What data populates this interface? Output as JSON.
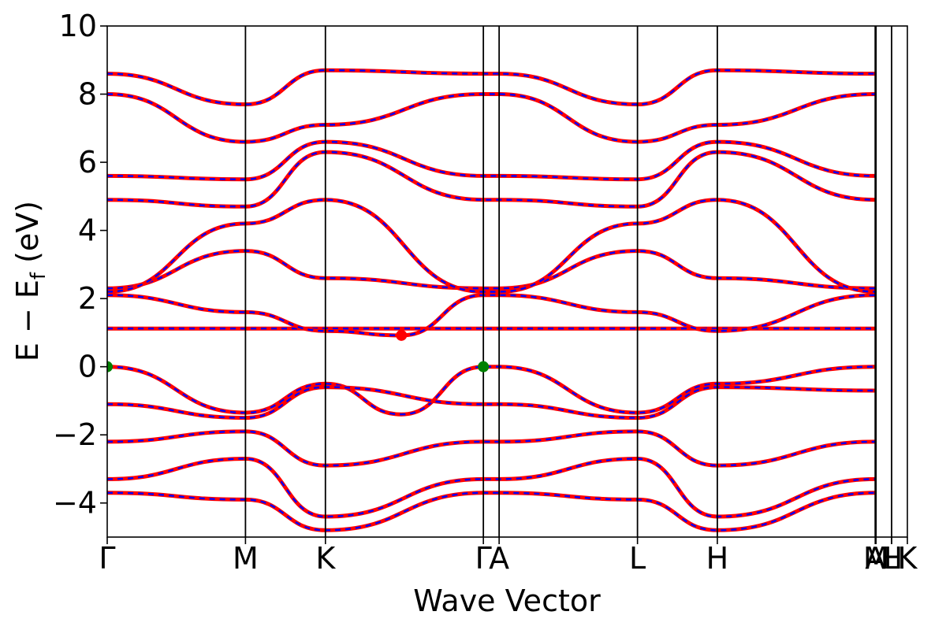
{
  "chart_data": {
    "type": "line",
    "title": "",
    "xlabel": "Wave Vector",
    "ylabel": "E − E",
    "ylabel_subscript": "f",
    "ylabel_unit": " (eV)",
    "ylim": [
      -5,
      10
    ],
    "y_ticks": [
      -4,
      -2,
      0,
      2,
      4,
      6,
      8,
      10
    ],
    "y_tick_labels": [
      "−4",
      "−2",
      "0",
      "2",
      "4",
      "6",
      "8",
      "10"
    ],
    "x_range": [
      0,
      1
    ],
    "high_symmetry_points": [
      {
        "label": "Γ",
        "x": 0.0
      },
      {
        "label": "M",
        "x": 0.1728
      },
      {
        "label": "K",
        "x": 0.2727
      },
      {
        "label": "Γ",
        "x": 0.4701
      },
      {
        "label": "A",
        "x": 0.4898
      },
      {
        "label": "L",
        "x": 0.6627
      },
      {
        "label": "H",
        "x": 0.7625
      },
      {
        "label": "A",
        "x": 0.9598
      },
      {
        "label": "M",
        "x": 0.9608
      },
      {
        "label": "L",
        "x": 0.9803
      },
      {
        "label": "H",
        "x": 0.9803
      },
      {
        "label": "K",
        "x": 1.0
      }
    ],
    "special_points": [
      {
        "name": "VBM",
        "x": 0.0,
        "y": 0.0,
        "color": "#008000"
      },
      {
        "name": "VBM",
        "x": 0.4701,
        "y": 0.0,
        "color": "#008000"
      },
      {
        "name": "CBM",
        "x": 0.3677,
        "y": 0.92,
        "color": "#ff0000"
      }
    ],
    "series_styles": [
      {
        "color": "#ff0000",
        "linestyle": "solid"
      },
      {
        "color": "#0000ff",
        "linestyle": "dashed"
      }
    ],
    "bands_approx": [
      [
        [
          0.0,
          1.12
        ],
        [
          0.1728,
          1.12
        ],
        [
          0.2727,
          1.12
        ],
        [
          0.4701,
          1.12
        ],
        [
          0.4898,
          1.12
        ],
        [
          0.6627,
          1.12
        ],
        [
          0.7625,
          1.12
        ],
        [
          0.9598,
          1.12
        ]
      ],
      [
        [
          0.0,
          2.1
        ],
        [
          0.1728,
          1.6
        ],
        [
          0.2727,
          1.05
        ],
        [
          0.3677,
          0.92
        ],
        [
          0.4701,
          2.1
        ],
        [
          0.4898,
          2.1
        ],
        [
          0.6627,
          1.6
        ],
        [
          0.7625,
          1.05
        ],
        [
          0.9598,
          2.1
        ]
      ],
      [
        [
          0.0,
          2.3
        ],
        [
          0.1728,
          3.4
        ],
        [
          0.2727,
          2.6
        ],
        [
          0.4701,
          2.3
        ],
        [
          0.4898,
          2.3
        ],
        [
          0.6627,
          3.4
        ],
        [
          0.7625,
          2.6
        ],
        [
          0.9598,
          2.3
        ]
      ],
      [
        [
          0.0,
          2.2
        ],
        [
          0.1728,
          4.2
        ],
        [
          0.2727,
          4.9
        ],
        [
          0.4701,
          2.2
        ],
        [
          0.4898,
          2.2
        ],
        [
          0.6627,
          4.2
        ],
        [
          0.7625,
          4.9
        ],
        [
          0.9598,
          2.2
        ]
      ],
      [
        [
          0.0,
          4.9
        ],
        [
          0.1728,
          4.7
        ],
        [
          0.2727,
          6.3
        ],
        [
          0.4701,
          4.9
        ],
        [
          0.4898,
          4.9
        ],
        [
          0.6627,
          4.7
        ],
        [
          0.7625,
          6.3
        ],
        [
          0.9598,
          4.9
        ]
      ],
      [
        [
          0.0,
          5.6
        ],
        [
          0.1728,
          5.5
        ],
        [
          0.2727,
          6.6
        ],
        [
          0.4701,
          5.6
        ],
        [
          0.4898,
          5.6
        ],
        [
          0.6627,
          5.5
        ],
        [
          0.7625,
          6.6
        ],
        [
          0.9598,
          5.6
        ]
      ],
      [
        [
          0.0,
          8.0
        ],
        [
          0.1728,
          6.6
        ],
        [
          0.2727,
          7.1
        ],
        [
          0.4701,
          8.0
        ],
        [
          0.4898,
          8.0
        ],
        [
          0.6627,
          6.6
        ],
        [
          0.7625,
          7.1
        ],
        [
          0.9598,
          8.0
        ]
      ],
      [
        [
          0.0,
          8.6
        ],
        [
          0.1728,
          7.7
        ],
        [
          0.2727,
          8.7
        ],
        [
          0.4701,
          8.6
        ],
        [
          0.4898,
          8.6
        ],
        [
          0.6627,
          7.7
        ],
        [
          0.7625,
          8.7
        ],
        [
          0.9598,
          8.6
        ]
      ],
      [
        [
          0.0,
          0.0
        ],
        [
          0.1728,
          -1.35
        ],
        [
          0.2727,
          -0.5
        ],
        [
          0.3677,
          -1.4
        ],
        [
          0.4701,
          0.0
        ],
        [
          0.4898,
          0.0
        ],
        [
          0.6627,
          -1.35
        ],
        [
          0.7625,
          -0.5
        ],
        [
          0.9598,
          0.0
        ]
      ],
      [
        [
          0.0,
          -1.1
        ],
        [
          0.1728,
          -1.5
        ],
        [
          0.2727,
          -0.6
        ],
        [
          0.4701,
          -1.1
        ],
        [
          0.4898,
          -1.1
        ],
        [
          0.6627,
          -1.5
        ],
        [
          0.7625,
          -0.6
        ],
        [
          0.9598,
          -0.7
        ]
      ],
      [
        [
          0.0,
          -2.2
        ],
        [
          0.1728,
          -1.9
        ],
        [
          0.2727,
          -2.9
        ],
        [
          0.4701,
          -2.2
        ],
        [
          0.4898,
          -2.2
        ],
        [
          0.6627,
          -1.9
        ],
        [
          0.7625,
          -2.9
        ],
        [
          0.9598,
          -2.2
        ]
      ],
      [
        [
          0.0,
          -3.3
        ],
        [
          0.1728,
          -2.7
        ],
        [
          0.2727,
          -4.4
        ],
        [
          0.4701,
          -3.3
        ],
        [
          0.4898,
          -3.3
        ],
        [
          0.6627,
          -2.7
        ],
        [
          0.7625,
          -4.4
        ],
        [
          0.9598,
          -3.3
        ]
      ],
      [
        [
          0.0,
          -3.7
        ],
        [
          0.1728,
          -3.9
        ],
        [
          0.2727,
          -4.8
        ],
        [
          0.4701,
          -3.7
        ],
        [
          0.4898,
          -3.7
        ],
        [
          0.6627,
          -3.9
        ],
        [
          0.7625,
          -4.8
        ],
        [
          0.9598,
          -3.7
        ]
      ]
    ],
    "grid": false,
    "legend": "none"
  }
}
